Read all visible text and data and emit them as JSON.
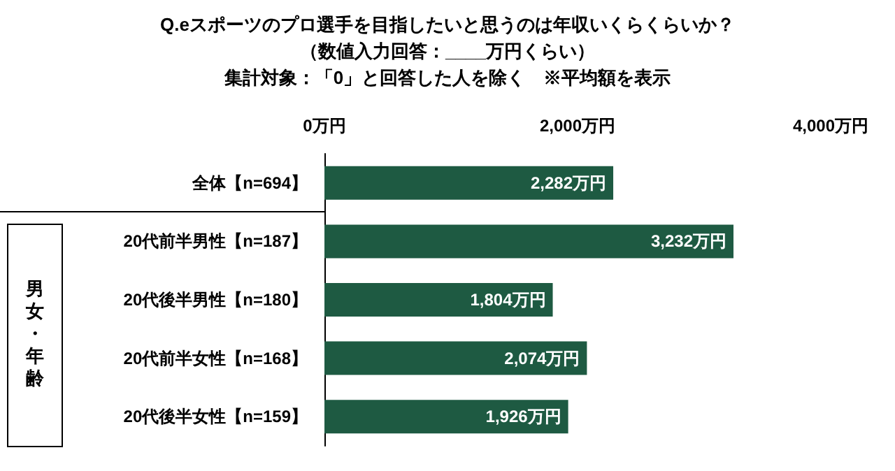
{
  "chart_data": {
    "type": "bar",
    "orientation": "horizontal",
    "title": "Q.eスポーツのプロ選手を目指したいと思うのは年収いくらくらいか？",
    "subtitle": "（数値入力回答：____万円くらい）",
    "categories": [
      "全体【n=694】",
      "20代前半男性【n=187】",
      "20代後半男性【n=180】",
      "20代前半女性【n=168】",
      "20代後半女性【n=159】"
    ],
    "values": [
      2282,
      3232,
      1804,
      2074,
      1926
    ],
    "value_labels": [
      "2,282万円",
      "3,232万円",
      "1,804万円",
      "2,074万円",
      "1,926万円"
    ],
    "color": "#1e5a42",
    "xlim": [
      0,
      4000
    ],
    "xticks": [
      {
        "value": 0,
        "label": "0万円"
      },
      {
        "value": 2000,
        "label": "2,000万円"
      },
      {
        "value": 4000,
        "label": "4,000万円"
      }
    ],
    "grid": false,
    "annotations": [
      "集計対象：「0」と回答した人を除く　※平均額を表示",
      "男女・年齢"
    ]
  }
}
